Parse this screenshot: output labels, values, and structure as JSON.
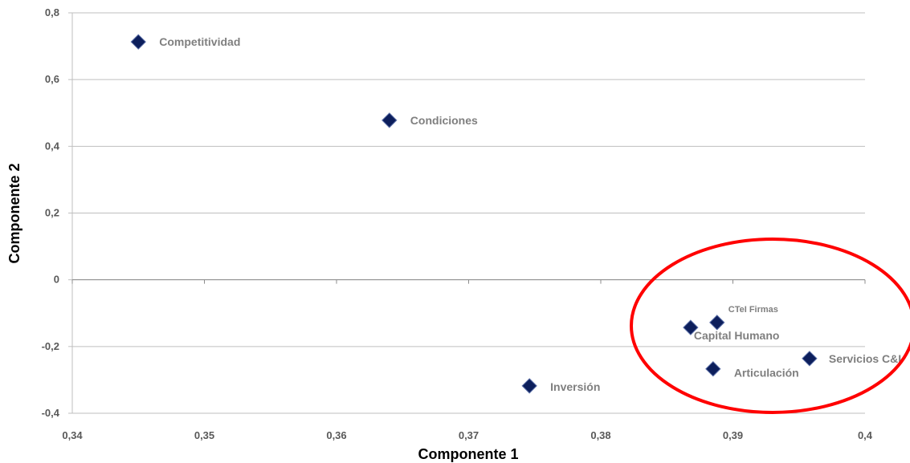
{
  "chart_data": {
    "type": "scatter",
    "xlabel": "Componente 1",
    "ylabel": "Componente 2",
    "xlim": [
      0.34,
      0.4
    ],
    "ylim": [
      -0.4,
      0.8
    ],
    "x_ticks": [
      "0,34",
      "0,35",
      "0,36",
      "0,37",
      "0,38",
      "0,39",
      "0,4"
    ],
    "x_tick_values": [
      0.34,
      0.35,
      0.36,
      0.37,
      0.38,
      0.39,
      0.4
    ],
    "y_ticks": [
      "-0,4",
      "-0,2",
      "0",
      "0,2",
      "0,4",
      "0,6",
      "0,8"
    ],
    "y_tick_values": [
      -0.4,
      -0.2,
      0,
      0.2,
      0.4,
      0.6,
      0.8
    ],
    "grid": true,
    "marker": "diamond",
    "marker_color": "#0d1f5c",
    "highlight_color": "#ff0000",
    "points": [
      {
        "label": "Competitividad",
        "x": 0.345,
        "y": 0.713
      },
      {
        "label": "Condiciones",
        "x": 0.364,
        "y": 0.478
      },
      {
        "label": "CTeI Firmas",
        "x": 0.3888,
        "y": -0.128
      },
      {
        "label": "Capital Humano",
        "x": 0.3868,
        "y": -0.143
      },
      {
        "label": "Servicios C&I",
        "x": 0.3958,
        "y": -0.236
      },
      {
        "label": "Articulación",
        "x": 0.3885,
        "y": -0.267
      },
      {
        "label": "Inversión",
        "x": 0.3746,
        "y": -0.318
      }
    ]
  }
}
